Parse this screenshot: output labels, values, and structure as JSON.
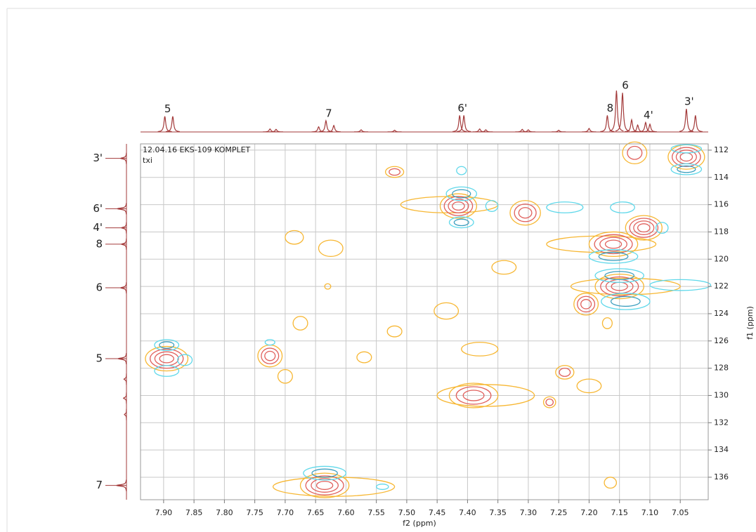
{
  "chart_data": {
    "type": "contour",
    "title": "12.04.16 EKS-109 KOMPLET",
    "subtitle": "txi",
    "x_label": "f2 (ppm)",
    "y_label": "f1 (ppm)",
    "xlim": [
      7.938,
      7.004
    ],
    "ylim": [
      111.54,
      137.65
    ],
    "xticks": [
      {
        "value": 7.9,
        "label": "7.90"
      },
      7.85,
      {
        "value": 7.8,
        "label": "7.80"
      },
      7.75,
      {
        "value": 7.7,
        "label": "7.70"
      },
      7.65,
      {
        "value": 7.6,
        "label": "7.60"
      },
      7.55,
      {
        "value": 7.5,
        "label": "7.50"
      },
      7.45,
      {
        "value": 7.4,
        "label": "7.40"
      },
      7.35,
      {
        "value": 7.3,
        "label": "7.30"
      },
      7.25,
      {
        "value": 7.2,
        "label": "7.20"
      },
      7.15,
      {
        "value": 7.1,
        "label": "7.10"
      },
      7.05
    ],
    "yticks": [
      112,
      114,
      116,
      118,
      120,
      122,
      124,
      126,
      128,
      130,
      132,
      134,
      136
    ],
    "grid": true,
    "positive_colors": [
      "#f7b733",
      "#e0605c"
    ],
    "negative_colors": [
      "#5fd8ea",
      "#3c9fbf"
    ],
    "trace_color": "#a33a3a",
    "top_projection": {
      "ylim": [
        0,
        100
      ],
      "peaks": [
        {
          "f2": 7.898,
          "height": 36,
          "label": "5"
        },
        {
          "f2": 7.885,
          "height": 36
        },
        {
          "f2": 7.725,
          "height": 7
        },
        {
          "f2": 7.715,
          "height": 6
        },
        {
          "f2": 7.645,
          "height": 12
        },
        {
          "f2": 7.633,
          "height": 26,
          "label": "7"
        },
        {
          "f2": 7.62,
          "height": 15
        },
        {
          "f2": 7.575,
          "height": 5
        },
        {
          "f2": 7.52,
          "height": 4
        },
        {
          "f2": 7.413,
          "height": 38,
          "label": "6'"
        },
        {
          "f2": 7.406,
          "height": 38
        },
        {
          "f2": 7.38,
          "height": 7
        },
        {
          "f2": 7.37,
          "height": 5
        },
        {
          "f2": 7.31,
          "height": 6
        },
        {
          "f2": 7.3,
          "height": 5
        },
        {
          "f2": 7.25,
          "height": 4
        },
        {
          "f2": 7.2,
          "height": 8
        },
        {
          "f2": 7.17,
          "height": 38,
          "label": "8"
        },
        {
          "f2": 7.155,
          "height": 95
        },
        {
          "f2": 7.145,
          "height": 90,
          "label": "6"
        },
        {
          "f2": 7.13,
          "height": 28
        },
        {
          "f2": 7.12,
          "height": 16
        },
        {
          "f2": 7.107,
          "height": 22,
          "label": "4'"
        },
        {
          "f2": 7.1,
          "height": 18
        },
        {
          "f2": 7.04,
          "height": 53,
          "label": "3'"
        },
        {
          "f2": 7.025,
          "height": 38
        }
      ]
    },
    "left_projection": {
      "xlim": [
        0,
        100
      ],
      "peaks": [
        {
          "f1": 112.6,
          "height": 14,
          "label": "3'"
        },
        {
          "f1": 116.3,
          "height": 22,
          "label": "6'"
        },
        {
          "f1": 117.7,
          "height": 12,
          "label": "4'"
        },
        {
          "f1": 118.9,
          "height": 12,
          "label": "8"
        },
        {
          "f1": 122.1,
          "height": 14,
          "label": "6"
        },
        {
          "f1": 127.3,
          "height": 20,
          "label": "5"
        },
        {
          "f1": 128.8,
          "height": 6
        },
        {
          "f1": 130.2,
          "height": 7
        },
        {
          "f1": 131.4,
          "height": 5
        },
        {
          "f1": 136.6,
          "height": 24,
          "label": "7"
        }
      ]
    },
    "cross_peaks": [
      {
        "f2": 7.895,
        "f1": 127.3,
        "w2": 0.035,
        "w1": 0.9,
        "levels": 4,
        "sign": 1
      },
      {
        "f2": 7.725,
        "f1": 127.1,
        "w2": 0.02,
        "w1": 0.8,
        "levels": 3,
        "sign": 1
      },
      {
        "f2": 7.62,
        "f1": 136.7,
        "w2": 0.1,
        "w1": 0.7,
        "levels": 1,
        "sign": 1
      },
      {
        "f2": 7.635,
        "f1": 136.6,
        "w2": 0.04,
        "w1": 0.9,
        "levels": 4,
        "sign": 1
      },
      {
        "f2": 7.43,
        "f1": 116.0,
        "w2": 0.08,
        "w1": 0.6,
        "levels": 1,
        "sign": 1
      },
      {
        "f2": 7.415,
        "f1": 116.1,
        "w2": 0.03,
        "w1": 0.9,
        "levels": 4,
        "sign": 1
      },
      {
        "f2": 7.37,
        "f1": 130.0,
        "w2": 0.08,
        "w1": 0.8,
        "levels": 1,
        "sign": 1
      },
      {
        "f2": 7.39,
        "f1": 130.0,
        "w2": 0.04,
        "w1": 0.9,
        "levels": 3,
        "sign": 1
      },
      {
        "f2": 7.305,
        "f1": 116.6,
        "w2": 0.025,
        "w1": 0.9,
        "levels": 3,
        "sign": 1
      },
      {
        "f2": 7.18,
        "f1": 118.9,
        "w2": 0.09,
        "w1": 0.6,
        "levels": 1,
        "sign": 1
      },
      {
        "f2": 7.16,
        "f1": 118.9,
        "w2": 0.04,
        "w1": 0.9,
        "levels": 4,
        "sign": 1
      },
      {
        "f2": 7.11,
        "f1": 117.7,
        "w2": 0.03,
        "w1": 0.9,
        "levels": 4,
        "sign": 1
      },
      {
        "f2": 7.14,
        "f1": 122.0,
        "w2": 0.09,
        "w1": 0.6,
        "levels": 1,
        "sign": 1
      },
      {
        "f2": 7.15,
        "f1": 122.0,
        "w2": 0.04,
        "w1": 0.9,
        "levels": 4,
        "sign": 1
      },
      {
        "f2": 7.205,
        "f1": 123.3,
        "w2": 0.02,
        "w1": 0.8,
        "levels": 3,
        "sign": 1
      },
      {
        "f2": 7.04,
        "f1": 112.5,
        "w2": 0.03,
        "w1": 0.9,
        "levels": 4,
        "sign": 1
      },
      {
        "f2": 7.125,
        "f1": 112.2,
        "w2": 0.02,
        "w1": 0.8,
        "levels": 2,
        "sign": 1
      },
      {
        "f2": 7.24,
        "f1": 128.3,
        "w2": 0.015,
        "w1": 0.5,
        "levels": 2,
        "sign": 1
      },
      {
        "f2": 7.265,
        "f1": 130.5,
        "w2": 0.01,
        "w1": 0.4,
        "levels": 2,
        "sign": 1
      },
      {
        "f2": 7.52,
        "f1": 113.6,
        "w2": 0.015,
        "w1": 0.4,
        "levels": 2,
        "sign": 1
      },
      {
        "f2": 7.685,
        "f1": 118.4,
        "w2": 0.015,
        "w1": 0.5,
        "levels": 1,
        "sign": 1
      },
      {
        "f2": 7.625,
        "f1": 119.2,
        "w2": 0.02,
        "w1": 0.6,
        "levels": 1,
        "sign": 1
      },
      {
        "f2": 7.63,
        "f1": 122.0,
        "w2": 0.005,
        "w1": 0.2,
        "levels": 1,
        "sign": 1
      },
      {
        "f2": 7.675,
        "f1": 124.7,
        "w2": 0.012,
        "w1": 0.5,
        "levels": 1,
        "sign": 1
      },
      {
        "f2": 7.435,
        "f1": 123.8,
        "w2": 0.02,
        "w1": 0.6,
        "levels": 1,
        "sign": 1
      },
      {
        "f2": 7.52,
        "f1": 125.3,
        "w2": 0.012,
        "w1": 0.4,
        "levels": 1,
        "sign": 1
      },
      {
        "f2": 7.57,
        "f1": 127.2,
        "w2": 0.012,
        "w1": 0.4,
        "levels": 1,
        "sign": 1
      },
      {
        "f2": 7.7,
        "f1": 128.6,
        "w2": 0.012,
        "w1": 0.5,
        "levels": 1,
        "sign": 1
      },
      {
        "f2": 7.38,
        "f1": 126.6,
        "w2": 0.03,
        "w1": 0.5,
        "levels": 1,
        "sign": 1
      },
      {
        "f2": 7.34,
        "f1": 120.6,
        "w2": 0.02,
        "w1": 0.5,
        "levels": 1,
        "sign": 1
      },
      {
        "f2": 7.2,
        "f1": 129.3,
        "w2": 0.02,
        "w1": 0.5,
        "levels": 1,
        "sign": 1
      },
      {
        "f2": 7.165,
        "f1": 136.4,
        "w2": 0.01,
        "w1": 0.4,
        "levels": 1,
        "sign": 1
      },
      {
        "f2": 7.17,
        "f1": 124.7,
        "w2": 0.008,
        "w1": 0.4,
        "levels": 1,
        "sign": 1
      },
      {
        "f2": 7.895,
        "f1": 126.3,
        "w2": 0.02,
        "w1": 0.4,
        "levels": 2,
        "sign": -1
      },
      {
        "f2": 7.895,
        "f1": 128.2,
        "w2": 0.02,
        "w1": 0.4,
        "levels": 1,
        "sign": -1
      },
      {
        "f2": 7.865,
        "f1": 127.4,
        "w2": 0.012,
        "w1": 0.4,
        "levels": 1,
        "sign": -1
      },
      {
        "f2": 7.725,
        "f1": 126.1,
        "w2": 0.008,
        "w1": 0.2,
        "levels": 1,
        "sign": -1
      },
      {
        "f2": 7.635,
        "f1": 135.7,
        "w2": 0.035,
        "w1": 0.5,
        "levels": 2,
        "sign": -1
      },
      {
        "f2": 7.41,
        "f1": 115.2,
        "w2": 0.025,
        "w1": 0.5,
        "levels": 2,
        "sign": -1
      },
      {
        "f2": 7.41,
        "f1": 113.5,
        "w2": 0.008,
        "w1": 0.3,
        "levels": 1,
        "sign": -1
      },
      {
        "f2": 7.41,
        "f1": 117.3,
        "w2": 0.02,
        "w1": 0.4,
        "levels": 2,
        "sign": -1
      },
      {
        "f2": 7.36,
        "f1": 116.1,
        "w2": 0.01,
        "w1": 0.4,
        "levels": 1,
        "sign": -1
      },
      {
        "f2": 7.24,
        "f1": 116.2,
        "w2": 0.03,
        "w1": 0.4,
        "levels": 1,
        "sign": -1
      },
      {
        "f2": 7.16,
        "f1": 119.8,
        "w2": 0.04,
        "w1": 0.5,
        "levels": 2,
        "sign": -1
      },
      {
        "f2": 7.15,
        "f1": 121.2,
        "w2": 0.04,
        "w1": 0.5,
        "levels": 2,
        "sign": -1
      },
      {
        "f2": 7.14,
        "f1": 123.1,
        "w2": 0.04,
        "w1": 0.6,
        "levels": 2,
        "sign": -1
      },
      {
        "f2": 7.145,
        "f1": 116.2,
        "w2": 0.02,
        "w1": 0.4,
        "levels": 1,
        "sign": -1
      },
      {
        "f2": 7.04,
        "f1": 113.4,
        "w2": 0.025,
        "w1": 0.4,
        "levels": 2,
        "sign": -1
      },
      {
        "f2": 7.04,
        "f1": 111.9,
        "w2": 0.025,
        "w1": 0.3,
        "levels": 1,
        "sign": -1
      },
      {
        "f2": 7.08,
        "f1": 117.7,
        "w2": 0.01,
        "w1": 0.4,
        "levels": 1,
        "sign": -1
      },
      {
        "f2": 7.05,
        "f1": 121.9,
        "w2": 0.05,
        "w1": 0.4,
        "levels": 1,
        "sign": -1
      },
      {
        "f2": 7.54,
        "f1": 136.7,
        "w2": 0.01,
        "w1": 0.2,
        "levels": 1,
        "sign": -1
      }
    ]
  }
}
